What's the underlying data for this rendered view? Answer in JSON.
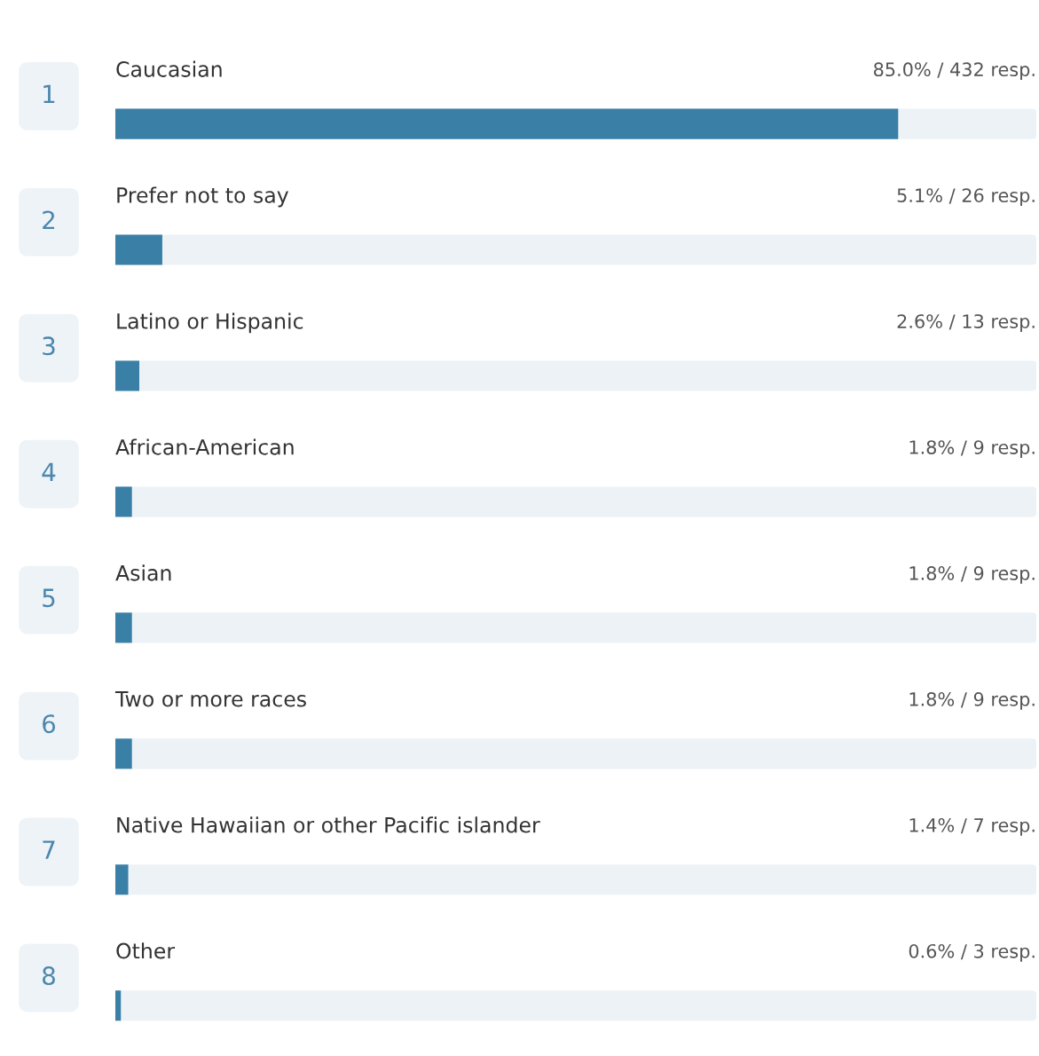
{
  "chart_data": {
    "type": "bar",
    "orientation": "horizontal",
    "categories": [
      "Caucasian",
      "Prefer not to say",
      "Latino or Hispanic",
      "African-American",
      "Asian",
      "Two or more races",
      "Native Hawaiian or other Pacific islander",
      "Other"
    ],
    "values": [
      85.0,
      5.1,
      2.6,
      1.8,
      1.8,
      1.8,
      1.4,
      0.6
    ],
    "value_labels": [
      "85.0% / 432 resp.",
      "5.1% / 26 resp.",
      "2.6% / 13 resp.",
      "1.8% / 9 resp.",
      "1.8% / 9 resp.",
      "1.8% / 9 resp.",
      "1.4% / 7 resp.",
      "0.6% / 3 resp."
    ],
    "annotations": [
      "1",
      "2",
      "3",
      "4",
      "5",
      "6",
      "7",
      "8"
    ],
    "color": "#3a7fa6",
    "xlim": [
      0,
      100
    ]
  }
}
